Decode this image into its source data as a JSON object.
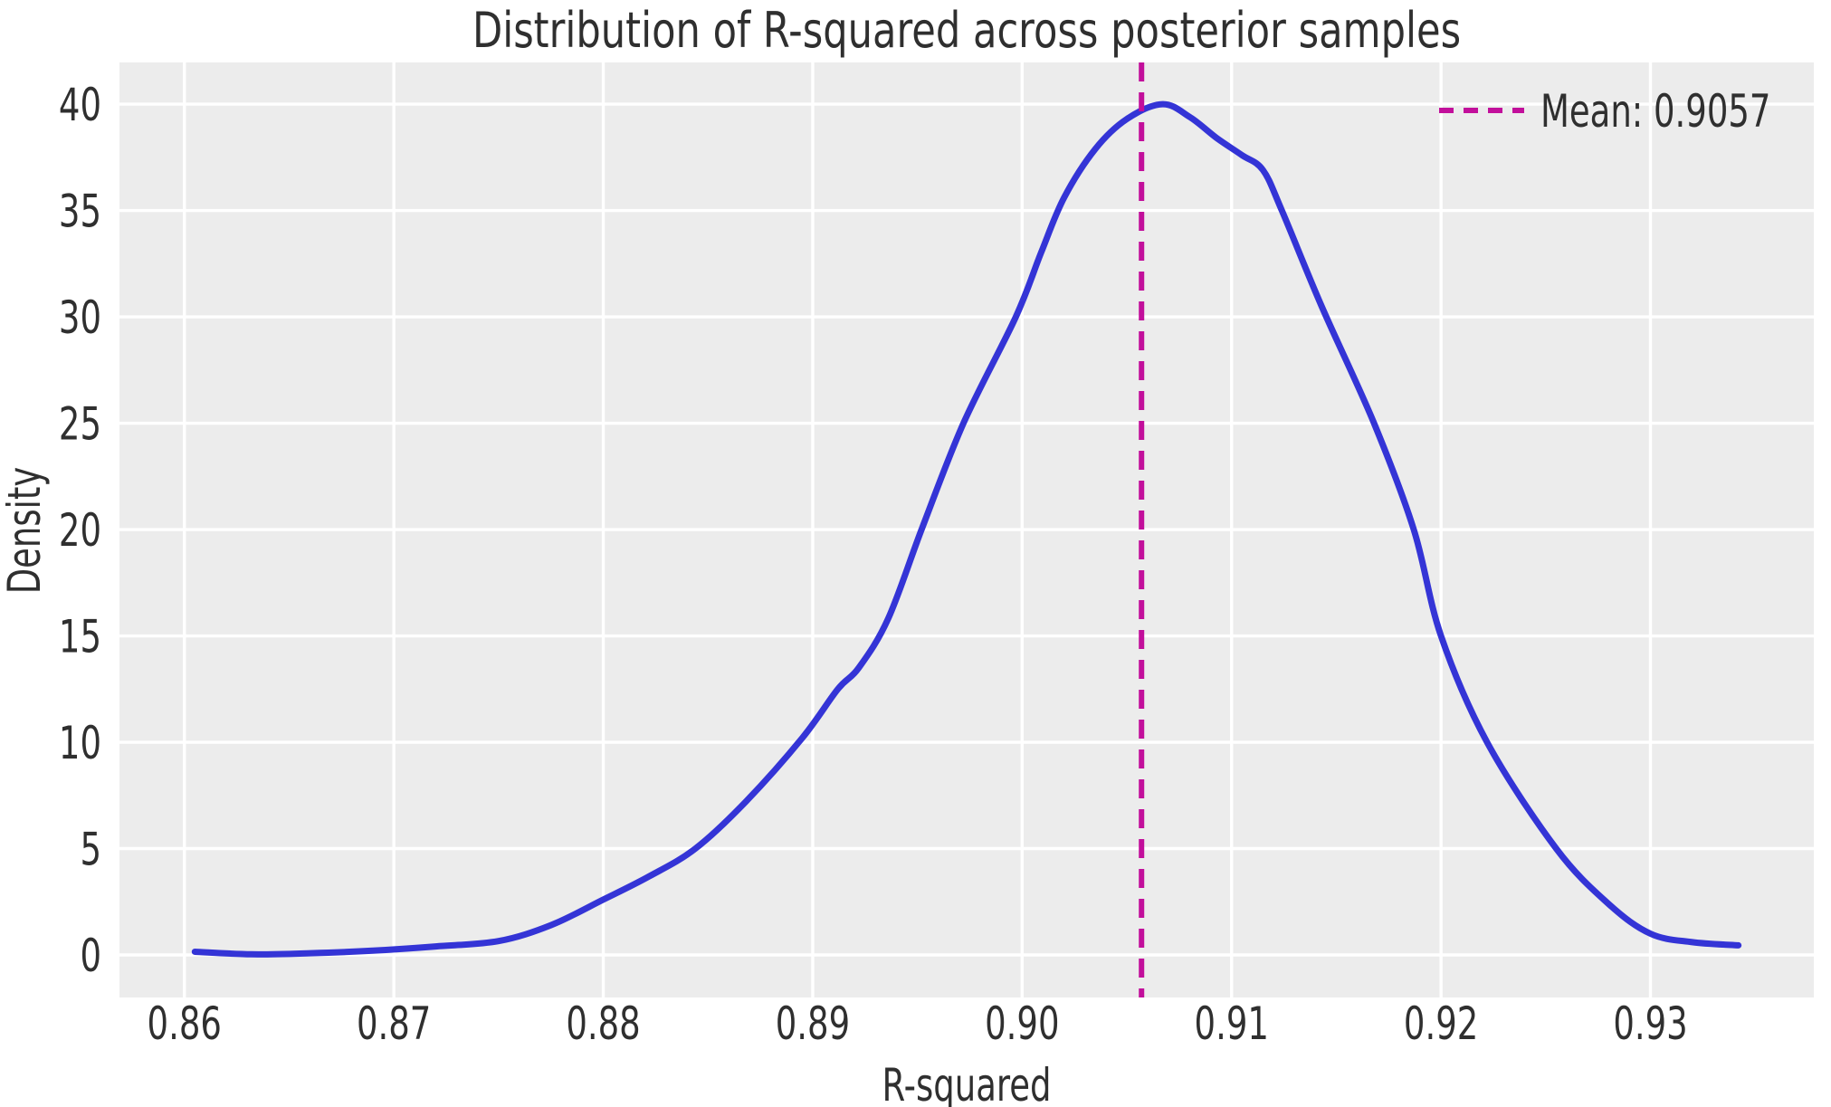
{
  "chart_data": {
    "type": "line",
    "subtype": "kde-density",
    "title": "Distribution of R-squared across posterior samples",
    "xlabel": "R-squared",
    "ylabel": "Density",
    "xlim": [
      0.8569,
      0.9378
    ],
    "ylim": [
      -2.0,
      41.96
    ],
    "grid": true,
    "x_ticks": [
      0.86,
      0.87,
      0.88,
      0.89,
      0.9,
      0.91,
      0.92,
      0.93
    ],
    "x_tick_labels": [
      "0.86",
      "0.87",
      "0.88",
      "0.89",
      "0.90",
      "0.91",
      "0.92",
      "0.93"
    ],
    "y_ticks": [
      0,
      5,
      10,
      15,
      20,
      25,
      30,
      35,
      40
    ],
    "y_tick_labels": [
      "0",
      "5",
      "10",
      "15",
      "20",
      "25",
      "30",
      "35",
      "40"
    ],
    "legend": {
      "position": "upper right",
      "entries": [
        {
          "label": "Mean: 0.9057",
          "line_style": "dashed",
          "color": "#c20f9b"
        }
      ]
    },
    "series": [
      {
        "name": "r-squared-posterior-density",
        "color": "#3434d6",
        "line_style": "solid",
        "points": [
          [
            0.8605,
            0.15
          ],
          [
            0.8632,
            0.03
          ],
          [
            0.866,
            0.08
          ],
          [
            0.869,
            0.2
          ],
          [
            0.872,
            0.4
          ],
          [
            0.875,
            0.65
          ],
          [
            0.8775,
            1.4
          ],
          [
            0.88,
            2.6
          ],
          [
            0.8822,
            3.7
          ],
          [
            0.8844,
            5.0
          ],
          [
            0.8868,
            7.2
          ],
          [
            0.8895,
            10.2
          ],
          [
            0.8912,
            12.5
          ],
          [
            0.8922,
            13.5
          ],
          [
            0.8936,
            15.8
          ],
          [
            0.8952,
            20.0
          ],
          [
            0.8972,
            25.0
          ],
          [
            0.8997,
            30.0
          ],
          [
            0.9009,
            33.0
          ],
          [
            0.902,
            35.6
          ],
          [
            0.9035,
            37.9
          ],
          [
            0.905,
            39.3
          ],
          [
            0.9067,
            40.0
          ],
          [
            0.908,
            39.4
          ],
          [
            0.9093,
            38.4
          ],
          [
            0.9105,
            37.6
          ],
          [
            0.9115,
            36.9
          ],
          [
            0.9124,
            35.0
          ],
          [
            0.9143,
            30.5
          ],
          [
            0.9168,
            25.0
          ],
          [
            0.9187,
            20.0
          ],
          [
            0.92,
            15.0
          ],
          [
            0.9222,
            10.0
          ],
          [
            0.9255,
            5.0
          ],
          [
            0.928,
            2.4
          ],
          [
            0.93,
            1.0
          ],
          [
            0.932,
            0.6
          ],
          [
            0.9342,
            0.45
          ]
        ]
      }
    ],
    "mean_line": {
      "x": 0.9057,
      "label": "Mean: 0.9057",
      "color": "#c20f9b",
      "line_style": "dashed"
    }
  },
  "colors": {
    "figure_bg": "#ffffff",
    "axes_bg": "#ececec",
    "grid": "#ffffff",
    "text": "#2f2f2f",
    "curve": "#3434d6",
    "mean_line": "#c20f9b"
  }
}
